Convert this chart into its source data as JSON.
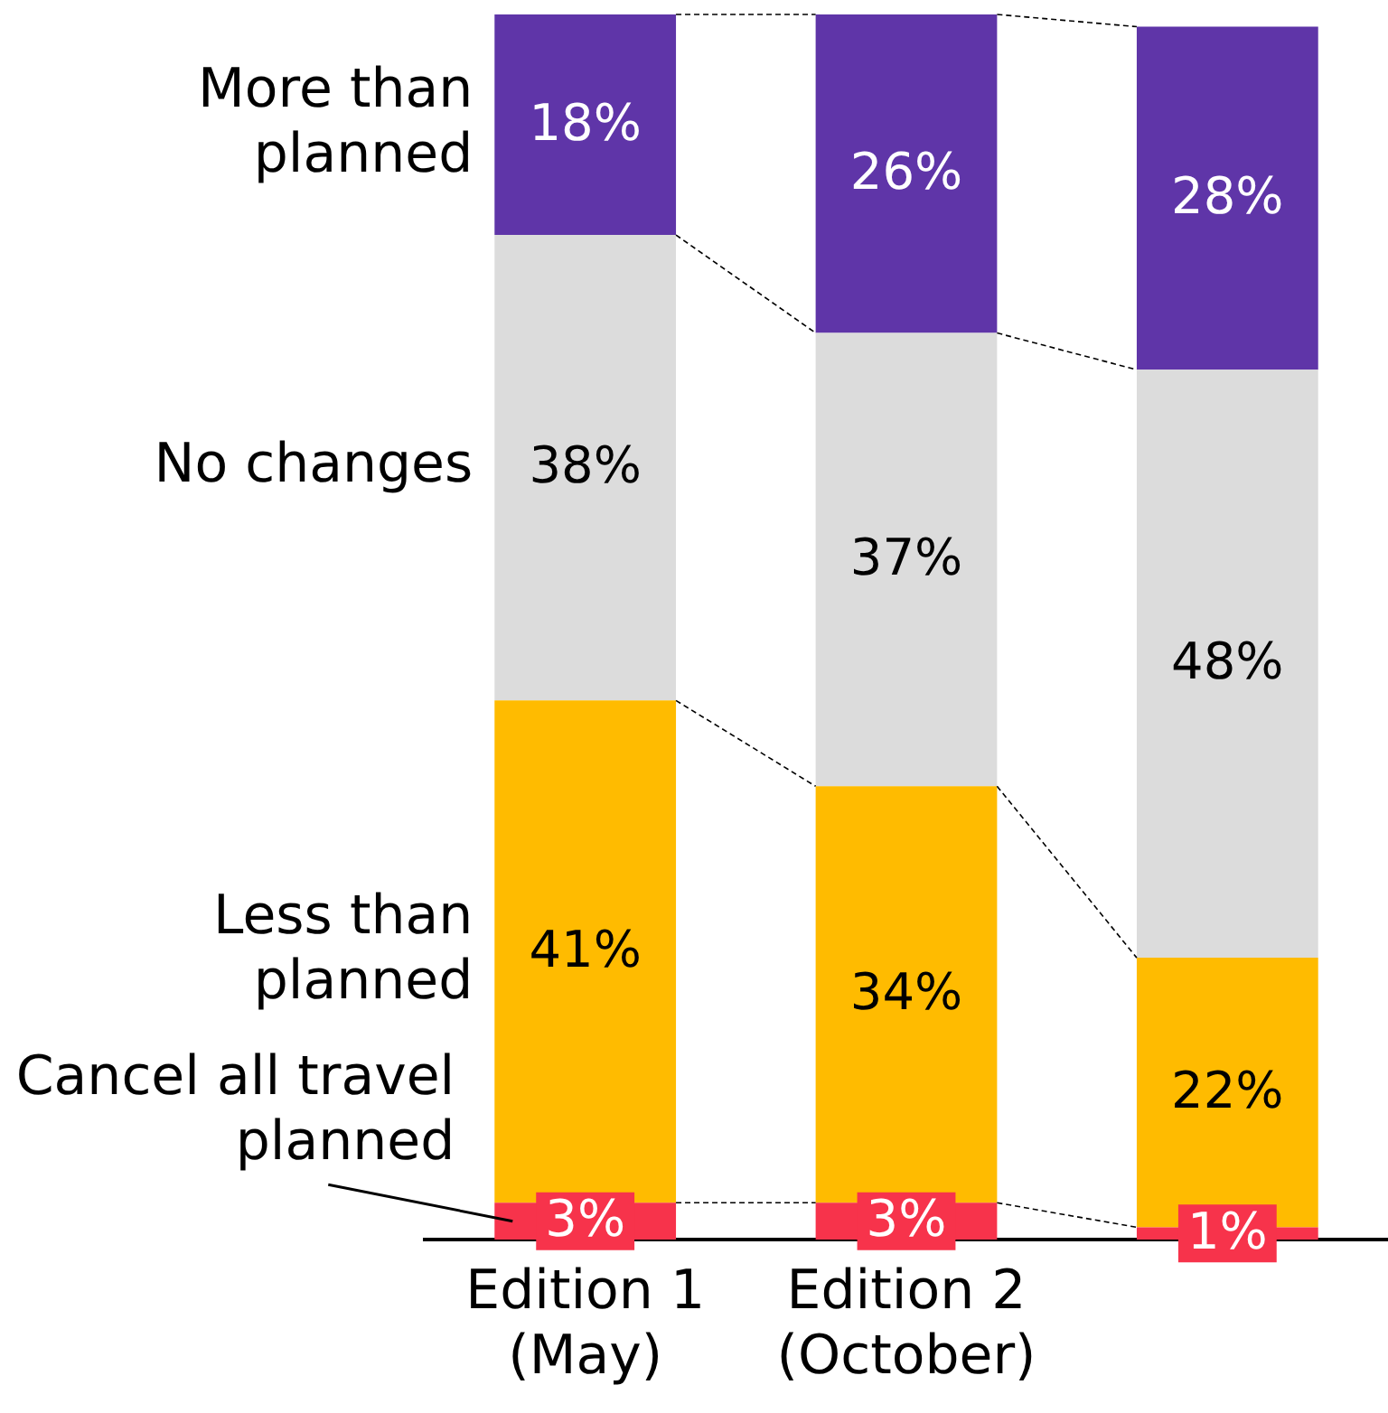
{
  "chart_data": {
    "type": "bar",
    "stacked": true,
    "categories": [
      "Edition 1 (May)",
      "Edition 2 (October)",
      null
    ],
    "series": [
      {
        "name": "Cancel all travel planned",
        "color": "#f7334b",
        "values": [
          3,
          3,
          1
        ],
        "value_labels": [
          "3%",
          "3%",
          "1%"
        ]
      },
      {
        "name": "Less than planned",
        "color": "#ffbb00",
        "values": [
          41,
          34,
          22
        ],
        "value_labels": [
          "41%",
          "34%",
          "22%"
        ]
      },
      {
        "name": "No changes",
        "color": "#dcdcdc",
        "values": [
          38,
          37,
          48
        ],
        "value_labels": [
          "38%",
          "37%",
          "48%"
        ]
      },
      {
        "name": "More than planned",
        "color": "#5f35a8",
        "values": [
          18,
          26,
          28
        ],
        "value_labels": [
          "18%",
          "26%",
          "28%"
        ]
      }
    ],
    "grid": false,
    "legend": false
  }
}
